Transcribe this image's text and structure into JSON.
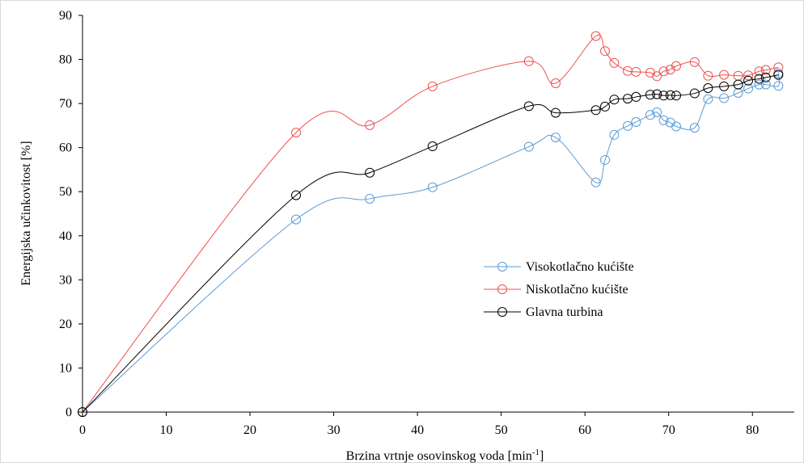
{
  "chart_data": {
    "type": "line",
    "title": "",
    "xlabel": "Brzina vrtnje osovinskog voda [min",
    "xlabel_sup": "-1",
    "xlabel_suffix": "]",
    "ylabel": "Energijska učinkovitost [%]",
    "xlim": [
      0,
      85
    ],
    "ylim": [
      0,
      90
    ],
    "xticks": [
      0,
      10,
      20,
      30,
      40,
      50,
      60,
      70,
      80
    ],
    "yticks": [
      0,
      10,
      20,
      30,
      40,
      50,
      60,
      70,
      80,
      90
    ],
    "grid": false,
    "legend_position": "center-right",
    "series": [
      {
        "name": "Visokotlačno kućište",
        "color": "#5b9bd5",
        "x": [
          0,
          25.5,
          34.3,
          41.8,
          53.3,
          56.5,
          61.3,
          62.4,
          63.5,
          65.1,
          66.1,
          67.8,
          68.6,
          69.4,
          70.2,
          70.9,
          73.1,
          74.7,
          76.6,
          78.3,
          79.5,
          80.8,
          81.6,
          83.1,
          83.1
        ],
        "values": [
          0,
          43.7,
          48.4,
          51.0,
          60.2,
          62.3,
          52.1,
          57.2,
          62.9,
          64.9,
          65.8,
          67.4,
          68.0,
          66.2,
          65.7,
          64.8,
          64.5,
          71.0,
          71.2,
          72.4,
          73.4,
          74.3,
          74.3,
          74.0,
          76.9
        ]
      },
      {
        "name": "Niskotlačno kućište",
        "color": "#f05050",
        "x": [
          0,
          25.5,
          34.3,
          41.8,
          53.3,
          56.5,
          61.3,
          62.4,
          63.5,
          65.1,
          66.1,
          67.8,
          68.6,
          69.4,
          70.2,
          70.9,
          73.1,
          74.7,
          76.6,
          78.3,
          79.5,
          80.8,
          81.6,
          83.1
        ],
        "values": [
          0,
          63.4,
          65.1,
          73.9,
          79.6,
          74.6,
          85.3,
          81.9,
          79.2,
          77.4,
          77.2,
          77.0,
          76.2,
          77.3,
          77.7,
          78.5,
          79.4,
          76.3,
          76.5,
          76.3,
          76.4,
          77.3,
          77.6,
          78.2
        ]
      },
      {
        "name": "Glavna turbina",
        "color": "#000000",
        "x": [
          0,
          25.5,
          34.3,
          41.8,
          53.3,
          56.5,
          61.3,
          62.4,
          63.5,
          65.1,
          66.1,
          67.8,
          68.6,
          69.4,
          70.2,
          70.9,
          73.1,
          74.7,
          76.6,
          78.3,
          79.5,
          80.8,
          81.6,
          83.1
        ],
        "values": [
          0,
          49.2,
          54.3,
          60.3,
          69.4,
          67.9,
          68.5,
          69.3,
          70.9,
          71.1,
          71.5,
          72.0,
          72.1,
          71.8,
          71.9,
          71.8,
          72.3,
          73.5,
          73.9,
          74.3,
          75.2,
          75.6,
          75.9,
          76.5
        ]
      }
    ]
  }
}
